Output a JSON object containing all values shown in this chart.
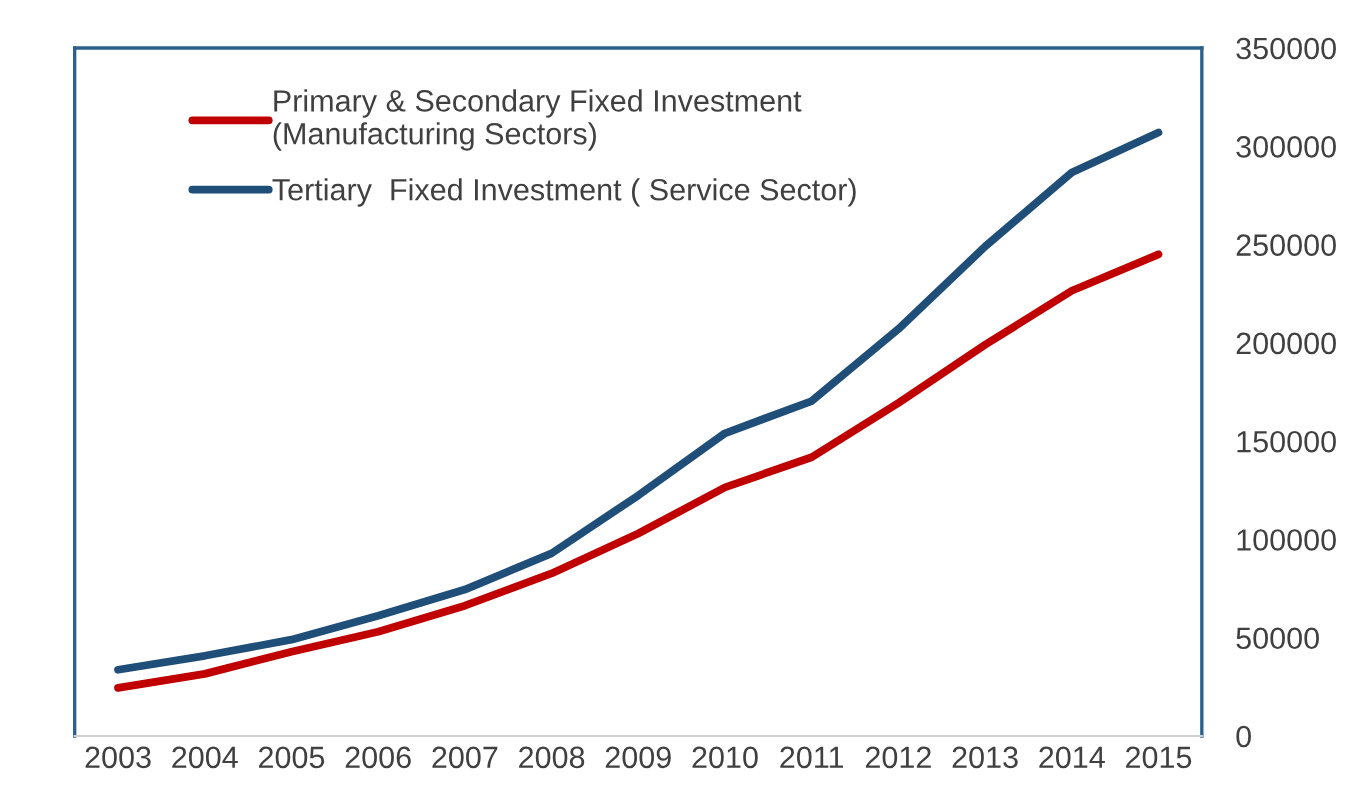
{
  "chart_data": {
    "type": "line",
    "categories": [
      "2003",
      "2004",
      "2005",
      "2006",
      "2007",
      "2008",
      "2009",
      "2010",
      "2011",
      "2012",
      "2013",
      "2014",
      "2015"
    ],
    "series": [
      {
        "name": "Primary & Secondary Fixed Investment\n(Manufacturing Sectors)",
        "color": "#c00000",
        "values": [
          24500,
          31600,
          42900,
          53000,
          66300,
          82700,
          103000,
          126500,
          141800,
          169400,
          199000,
          226500,
          245000
        ]
      },
      {
        "name": "Tertiary  Fixed Investment ( Service Sector)",
        "color": "#1f4e79",
        "values": [
          33700,
          40800,
          49000,
          61200,
          74500,
          92900,
          122400,
          154000,
          170400,
          207000,
          249000,
          286700,
          307000
        ]
      }
    ],
    "ylim": [
      0,
      350000
    ],
    "yticks": [
      0,
      50000,
      100000,
      150000,
      200000,
      250000,
      300000,
      350000
    ],
    "grid": false,
    "legend": "top left",
    "marker": "none",
    "line_style": "solid"
  }
}
